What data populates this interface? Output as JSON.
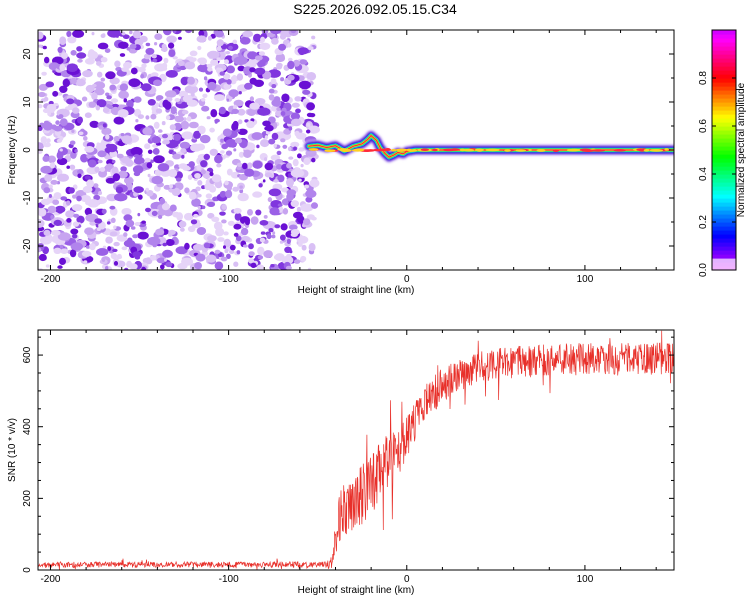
{
  "title": "S225.2026.092.05.15.C34",
  "chart_data": [
    {
      "type": "heatmap",
      "title": "S225.2026.092.05.15.C34",
      "xlabel": "Height of straight line (km)",
      "ylabel": "Frequency (Hz)",
      "xlim": [
        -207,
        150
      ],
      "ylim": [
        -25,
        25
      ],
      "xticks": [
        -200,
        -100,
        0,
        100
      ],
      "yticks": [
        -20,
        -10,
        0,
        10,
        20
      ],
      "noise_region_x": [
        -207,
        -55
      ],
      "signal_track": {
        "x": [
          -55,
          -50,
          -45,
          -40,
          -35,
          -30,
          -25,
          -22,
          -20,
          -17,
          -15,
          -12,
          -10,
          -7,
          -5,
          -2,
          0,
          5,
          20,
          40,
          60,
          80,
          100,
          120,
          140,
          150
        ],
        "y": [
          0.8,
          1.0,
          0.5,
          0.9,
          -0.2,
          0.8,
          1.3,
          2.2,
          3.0,
          2.0,
          0.5,
          -0.8,
          -1.5,
          -1.0,
          -0.5,
          -0.8,
          -0.3,
          0.0,
          0.0,
          0.0,
          0.0,
          0.0,
          0.0,
          0.0,
          0.0,
          0.0
        ]
      },
      "colorbar": {
        "label": "Normalized spectral amplitude",
        "range": [
          0.0,
          1.0
        ],
        "ticks": [
          0.0,
          0.2,
          0.4,
          0.6,
          0.8
        ],
        "tick_labels": [
          "0.0",
          "0.2",
          "0.4",
          "0.6",
          "0.8"
        ]
      }
    },
    {
      "type": "line",
      "xlabel": "Height of straight line (km)",
      "ylabel": "SNR (10 * v/v)",
      "xlim": [
        -207,
        150
      ],
      "ylim": [
        0,
        670
      ],
      "xticks": [
        -200,
        -100,
        0,
        100
      ],
      "yticks": [
        0,
        200,
        400,
        600
      ],
      "series": [
        {
          "name": "SNR",
          "color": "#e8302a",
          "x": [
            -207,
            -180,
            -150,
            -120,
            -90,
            -60,
            -45,
            -42,
            -40,
            -38,
            -35,
            -30,
            -25,
            -20,
            -15,
            -10,
            -5,
            0,
            5,
            10,
            15,
            20,
            30,
            40,
            50,
            60,
            80,
            100,
            120,
            140,
            150
          ],
          "values": [
            15,
            15,
            15,
            15,
            15,
            15,
            15,
            20,
            80,
            140,
            170,
            180,
            210,
            240,
            270,
            300,
            340,
            380,
            420,
            460,
            490,
            515,
            545,
            565,
            575,
            580,
            585,
            590,
            590,
            590,
            590
          ],
          "noise_amplitude": [
            8,
            8,
            8,
            8,
            8,
            8,
            8,
            20,
            60,
            70,
            80,
            80,
            85,
            85,
            85,
            85,
            80,
            70,
            60,
            55,
            55,
            50,
            45,
            45,
            45,
            45,
            45,
            45,
            45,
            45,
            45
          ]
        }
      ]
    }
  ]
}
